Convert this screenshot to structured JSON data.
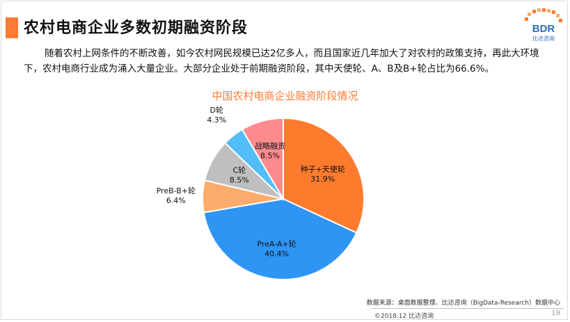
{
  "header": {
    "title": "农村电商企业多数初期融资阶段",
    "logo_text": "BDR",
    "logo_sub": "比达咨询"
  },
  "body_text": "随着农村上网条件的不断改善，如今农村网民规模已达2亿多人，而且国家近几年加大了对农村的政策支持，再此大环境下，农村电商行业成为涌入大量企业。大部分企业处于前期融资阶段，其中天使轮、A、B及B+轮占比为66.6%。",
  "chart_data": {
    "type": "pie",
    "title": "中国农村电商企业融资阶段情况",
    "slices": [
      {
        "label": "种子+天使轮",
        "value": 31.9,
        "value_label": "31.9%",
        "color": "#fe7b2e"
      },
      {
        "label": "PreA-A+轮",
        "value": 40.4,
        "value_label": "40.4%",
        "color": "#2e95f5"
      },
      {
        "label": "PreB-B+轮",
        "value": 6.4,
        "value_label": "6.4%",
        "color": "#fdab6c"
      },
      {
        "label": "C轮",
        "value": 8.5,
        "value_label": "8.5%",
        "color": "#bfbfbf"
      },
      {
        "label": "D轮",
        "value": 4.3,
        "value_label": "4.3%",
        "color": "#52bdf7"
      },
      {
        "label": "战略融资",
        "value": 8.5,
        "value_label": "8.5%",
        "color": "#fb8b8f"
      }
    ],
    "start": "12 o'clock",
    "direction": "clockwise"
  },
  "footer": {
    "source": "数据来源：桌面数据整理、比达咨询（BigData-Research）数据中心",
    "copyright": "©2018.12 比达咨询",
    "page": "19"
  }
}
